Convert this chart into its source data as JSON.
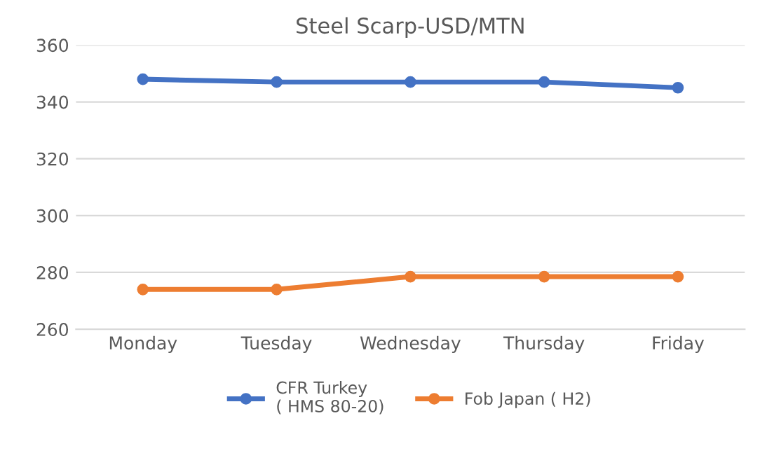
{
  "chart_data": {
    "type": "line",
    "title": "Steel Scarp-USD/MTN",
    "categories": [
      "Monday",
      "Tuesday",
      "Wednesday",
      "Thursday",
      "Friday"
    ],
    "series": [
      {
        "name": "CFR Turkey\n( HMS 80-20)",
        "color": "#4472c4",
        "values": [
          348,
          347,
          347,
          347,
          345
        ]
      },
      {
        "name": "Fob Japan ( H2)",
        "color": "#ed7d31",
        "values": [
          274,
          274,
          278.5,
          278.5,
          278.5
        ]
      }
    ],
    "ylim": [
      260,
      360
    ],
    "yticks": [
      260,
      280,
      300,
      320,
      340,
      360
    ],
    "grid": "y",
    "legend": "bottom",
    "marker": "circle",
    "line_style": "solid"
  }
}
